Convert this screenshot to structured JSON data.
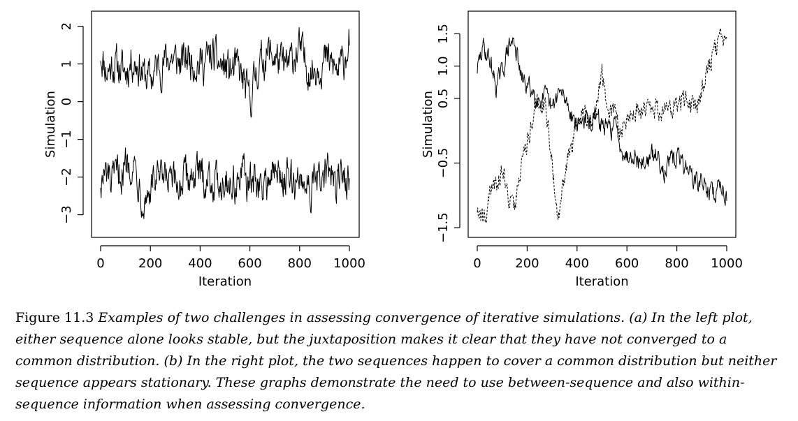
{
  "chart_data": [
    {
      "type": "line",
      "xlabel": "Iteration",
      "ylabel": "Simulation",
      "xlim": [
        0,
        1000
      ],
      "ylim": [
        -3.6,
        2.4
      ],
      "xticks": [
        0,
        200,
        400,
        600,
        800,
        1000
      ],
      "xtick_labels": [
        "0",
        "200",
        "400",
        "600",
        "800",
        "1000"
      ],
      "yticks": [
        -3,
        -2,
        -1,
        0,
        1,
        2
      ],
      "ytick_labels": [
        "−3",
        "−2",
        "−1",
        "0",
        "1",
        "2"
      ],
      "grid": false,
      "series": [
        {
          "style": "solid",
          "x": [
            0,
            25,
            50,
            75,
            100,
            125,
            150,
            175,
            200,
            225,
            250,
            275,
            300,
            325,
            350,
            375,
            400,
            425,
            450,
            475,
            500,
            525,
            550,
            575,
            600,
            625,
            650,
            675,
            700,
            725,
            750,
            775,
            800,
            825,
            850,
            875,
            900,
            925,
            950,
            975,
            1000
          ],
          "values": [
            1.3,
            0.8,
            1.0,
            0.9,
            0.8,
            1.1,
            1.0,
            0.7,
            0.6,
            0.9,
            1.0,
            1.2,
            1.1,
            1.0,
            1.2,
            1.1,
            1.0,
            1.1,
            1.2,
            1.0,
            0.9,
            0.8,
            0.9,
            0.5,
            0.0,
            0.8,
            1.1,
            1.3,
            1.2,
            1.0,
            0.9,
            1.2,
            1.4,
            1.0,
            0.8,
            1.0,
            1.1,
            1.0,
            0.8,
            1.0,
            1.7
          ]
        },
        {
          "style": "solid",
          "x": [
            0,
            25,
            50,
            75,
            100,
            125,
            150,
            175,
            200,
            225,
            250,
            275,
            300,
            325,
            350,
            375,
            400,
            425,
            450,
            475,
            500,
            525,
            550,
            575,
            600,
            625,
            650,
            675,
            700,
            725,
            750,
            775,
            800,
            825,
            850,
            875,
            900,
            925,
            950,
            975,
            1000
          ],
          "values": [
            -2.1,
            -2.0,
            -2.2,
            -1.9,
            -1.7,
            -1.5,
            -2.0,
            -2.6,
            -2.3,
            -2.0,
            -2.2,
            -2.1,
            -2.3,
            -2.1,
            -2.0,
            -1.9,
            -2.0,
            -2.0,
            -2.1,
            -2.1,
            -2.0,
            -2.2,
            -2.1,
            -2.0,
            -2.2,
            -2.1,
            -2.4,
            -2.0,
            -1.9,
            -2.0,
            -2.0,
            -2.2,
            -2.1,
            -2.0,
            -2.3,
            -2.1,
            -2.0,
            -1.9,
            -2.2,
            -2.0,
            -2.0
          ]
        }
      ]
    },
    {
      "type": "line",
      "xlabel": "Iteration",
      "ylabel": "Simulation",
      "xlim": [
        0,
        1000
      ],
      "ylim": [
        -1.65,
        1.85
      ],
      "xticks": [
        0,
        200,
        400,
        600,
        800,
        1000
      ],
      "xtick_labels": [
        "0",
        "200",
        "400",
        "600",
        "800",
        "1000"
      ],
      "yticks": [
        -1.5,
        -0.5,
        0.5,
        1.0,
        1.5
      ],
      "ytick_labels": [
        "−1.5",
        "−0.5",
        "0.5",
        "1.0",
        "1.5"
      ],
      "grid": false,
      "series": [
        {
          "style": "solid",
          "x": [
            0,
            25,
            50,
            75,
            100,
            125,
            150,
            175,
            200,
            225,
            250,
            275,
            300,
            325,
            350,
            375,
            400,
            425,
            450,
            475,
            500,
            525,
            550,
            575,
            600,
            625,
            650,
            675,
            700,
            725,
            750,
            775,
            800,
            825,
            850,
            875,
            900,
            925,
            950,
            975,
            1000
          ],
          "values": [
            0.95,
            1.3,
            1.1,
            0.7,
            0.9,
            1.3,
            1.4,
            0.8,
            0.7,
            0.6,
            0.5,
            0.5,
            0.3,
            0.6,
            0.5,
            0.3,
            0.1,
            0.2,
            0.1,
            0.2,
            0.1,
            0.0,
            0.1,
            -0.2,
            -0.4,
            -0.3,
            -0.5,
            -0.5,
            -0.4,
            -0.4,
            -0.6,
            -0.5,
            -0.4,
            -0.5,
            -0.6,
            -0.8,
            -0.8,
            -0.9,
            -1.0,
            -0.8,
            -1.0
          ]
        },
        {
          "style": "dashed",
          "x": [
            0,
            25,
            50,
            75,
            100,
            125,
            150,
            175,
            200,
            225,
            250,
            275,
            300,
            325,
            350,
            375,
            400,
            425,
            450,
            475,
            500,
            525,
            550,
            575,
            600,
            625,
            650,
            675,
            700,
            725,
            750,
            775,
            800,
            825,
            850,
            875,
            900,
            925,
            950,
            975,
            1000
          ],
          "values": [
            -1.2,
            -1.4,
            -1.0,
            -0.8,
            -0.6,
            -1.0,
            -1.2,
            -0.5,
            -0.2,
            0.3,
            0.5,
            0.4,
            -0.5,
            -1.4,
            -0.7,
            -0.3,
            0.1,
            0.2,
            0.2,
            0.3,
            0.9,
            0.2,
            0.3,
            0.0,
            0.2,
            0.3,
            0.3,
            0.4,
            0.4,
            0.3,
            0.4,
            0.3,
            0.4,
            0.5,
            0.4,
            0.3,
            0.7,
            1.0,
            1.2,
            1.4,
            1.3
          ]
        }
      ]
    }
  ],
  "caption": {
    "figure_label": "Figure 11.3",
    "text": "Examples of two challenges in assessing convergence of iterative simulations. (a) In the left plot, either sequence alone looks stable, but the juxtaposition makes it clear that they have not converged to a common distribution. (b) In the right plot, the two sequences happen to cover a common distribution but neither sequence appears stationary. These graphs demonstrate the need to use between-sequence and also within-sequence information when assessing convergence."
  }
}
